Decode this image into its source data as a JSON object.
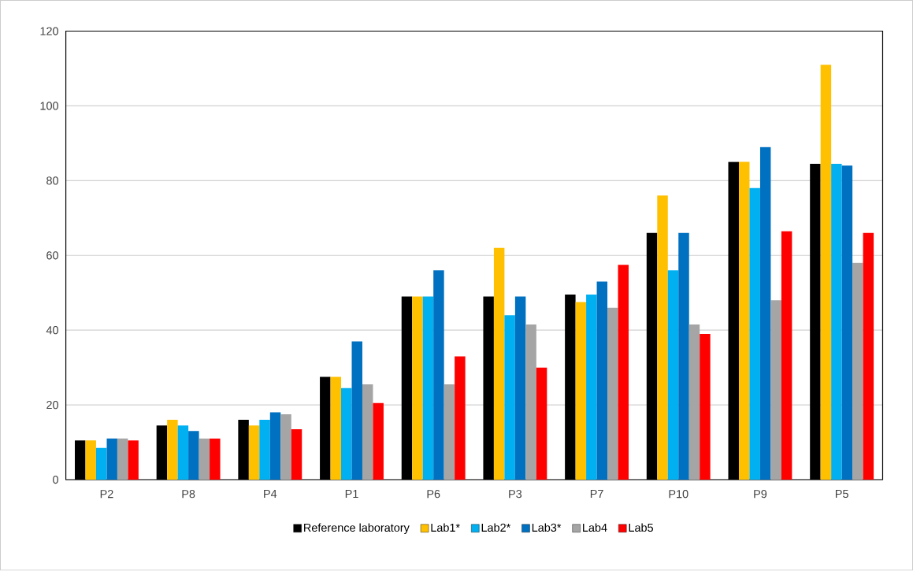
{
  "chart_data": {
    "type": "bar",
    "categories": [
      "P2",
      "P8",
      "P4",
      "P1",
      "P6",
      "P3",
      "P7",
      "P10",
      "P9",
      "P5"
    ],
    "series": [
      {
        "name": "Reference laboratory",
        "color": "#000000",
        "values": [
          10.5,
          14.5,
          16,
          27.5,
          49,
          49,
          49.5,
          66,
          85,
          84.5
        ]
      },
      {
        "name": "Lab1*",
        "color": "#ffc000",
        "values": [
          10.5,
          16,
          14.5,
          27.5,
          49,
          62,
          47.5,
          76,
          85,
          111
        ]
      },
      {
        "name": "Lab2*",
        "color": "#00b0f0",
        "values": [
          8.5,
          14.5,
          16,
          24.5,
          49,
          44,
          49.5,
          56,
          78,
          84.5
        ]
      },
      {
        "name": "Lab3*",
        "color": "#0070c0",
        "values": [
          11,
          13,
          18,
          37,
          56,
          49,
          53,
          66,
          89,
          84
        ]
      },
      {
        "name": "Lab4",
        "color": "#a5a5a5",
        "values": [
          11,
          11,
          17.5,
          25.5,
          25.5,
          41.5,
          46,
          41.5,
          48,
          58
        ]
      },
      {
        "name": "Lab5",
        "color": "#ff0000",
        "values": [
          10.5,
          11,
          13.5,
          20.5,
          33,
          30,
          57.5,
          39,
          66.5,
          66
        ]
      }
    ],
    "ylim": [
      0,
      120
    ],
    "yticks": [
      0,
      20,
      40,
      60,
      80,
      100,
      120
    ],
    "grid": "y",
    "legend": "bottom"
  }
}
